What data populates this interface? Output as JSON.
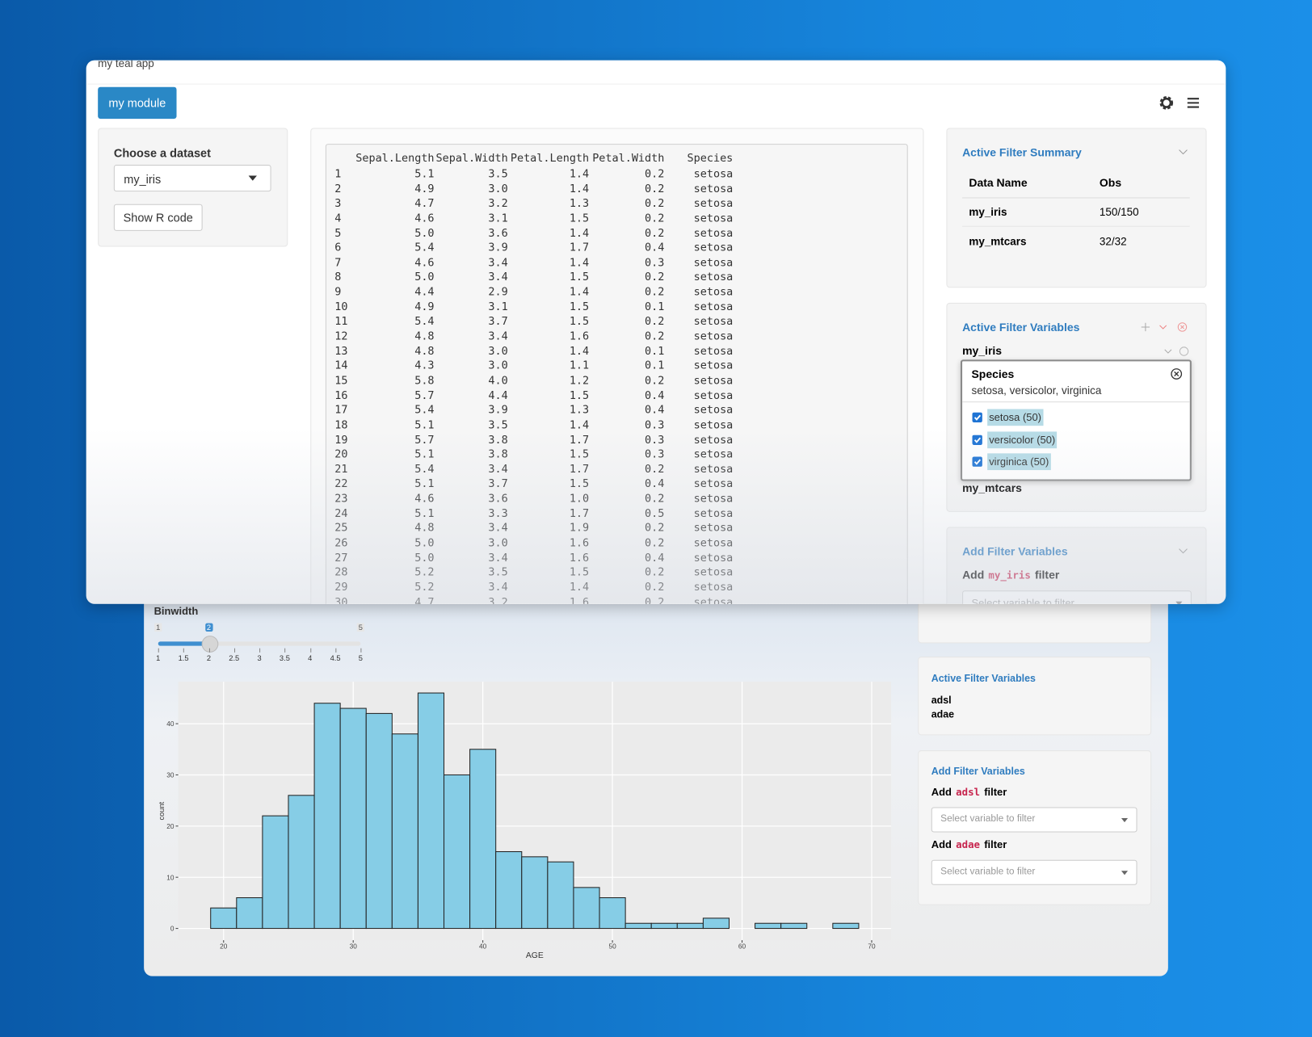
{
  "app_title": "my teal app",
  "module_tab": "my module",
  "encoding": {
    "label": "Choose a dataset",
    "dataset": "my_iris",
    "button": "Show R code"
  },
  "data_table": {
    "columns": [
      "Sepal.Length",
      "Sepal.Width",
      "Petal.Length",
      "Petal.Width",
      "Species"
    ],
    "rows": [
      [
        "1",
        "5.1",
        "3.5",
        "1.4",
        "0.2",
        "setosa"
      ],
      [
        "2",
        "4.9",
        "3.0",
        "1.4",
        "0.2",
        "setosa"
      ],
      [
        "3",
        "4.7",
        "3.2",
        "1.3",
        "0.2",
        "setosa"
      ],
      [
        "4",
        "4.6",
        "3.1",
        "1.5",
        "0.2",
        "setosa"
      ],
      [
        "5",
        "5.0",
        "3.6",
        "1.4",
        "0.2",
        "setosa"
      ],
      [
        "6",
        "5.4",
        "3.9",
        "1.7",
        "0.4",
        "setosa"
      ],
      [
        "7",
        "4.6",
        "3.4",
        "1.4",
        "0.3",
        "setosa"
      ],
      [
        "8",
        "5.0",
        "3.4",
        "1.5",
        "0.2",
        "setosa"
      ],
      [
        "9",
        "4.4",
        "2.9",
        "1.4",
        "0.2",
        "setosa"
      ],
      [
        "10",
        "4.9",
        "3.1",
        "1.5",
        "0.1",
        "setosa"
      ],
      [
        "11",
        "5.4",
        "3.7",
        "1.5",
        "0.2",
        "setosa"
      ],
      [
        "12",
        "4.8",
        "3.4",
        "1.6",
        "0.2",
        "setosa"
      ],
      [
        "13",
        "4.8",
        "3.0",
        "1.4",
        "0.1",
        "setosa"
      ],
      [
        "14",
        "4.3",
        "3.0",
        "1.1",
        "0.1",
        "setosa"
      ],
      [
        "15",
        "5.8",
        "4.0",
        "1.2",
        "0.2",
        "setosa"
      ],
      [
        "16",
        "5.7",
        "4.4",
        "1.5",
        "0.4",
        "setosa"
      ],
      [
        "17",
        "5.4",
        "3.9",
        "1.3",
        "0.4",
        "setosa"
      ],
      [
        "18",
        "5.1",
        "3.5",
        "1.4",
        "0.3",
        "setosa"
      ],
      [
        "19",
        "5.7",
        "3.8",
        "1.7",
        "0.3",
        "setosa"
      ],
      [
        "20",
        "5.1",
        "3.8",
        "1.5",
        "0.3",
        "setosa"
      ],
      [
        "21",
        "5.4",
        "3.4",
        "1.7",
        "0.2",
        "setosa"
      ],
      [
        "22",
        "5.1",
        "3.7",
        "1.5",
        "0.4",
        "setosa"
      ],
      [
        "23",
        "4.6",
        "3.6",
        "1.0",
        "0.2",
        "setosa"
      ],
      [
        "24",
        "5.1",
        "3.3",
        "1.7",
        "0.5",
        "setosa"
      ],
      [
        "25",
        "4.8",
        "3.4",
        "1.9",
        "0.2",
        "setosa"
      ],
      [
        "26",
        "5.0",
        "3.0",
        "1.6",
        "0.2",
        "setosa"
      ],
      [
        "27",
        "5.0",
        "3.4",
        "1.6",
        "0.4",
        "setosa"
      ],
      [
        "28",
        "5.2",
        "3.5",
        "1.5",
        "0.2",
        "setosa"
      ],
      [
        "29",
        "5.2",
        "3.4",
        "1.4",
        "0.2",
        "setosa"
      ],
      [
        "30",
        "4.7",
        "3.2",
        "1.6",
        "0.2",
        "setosa"
      ]
    ]
  },
  "filter_summary": {
    "title": "Active Filter Summary",
    "headers": [
      "Data Name",
      "Obs"
    ],
    "rows": [
      [
        "my_iris",
        "150/150"
      ],
      [
        "my_mtcars",
        "32/32"
      ]
    ]
  },
  "active_filters": {
    "title": "Active Filter Variables",
    "datasets": [
      {
        "name": "my_iris",
        "filters": [
          {
            "variable": "Species",
            "selected": "setosa, versicolor, virginica",
            "choices": [
              "setosa (50)",
              "versicolor (50)",
              "virginica (50)"
            ]
          }
        ]
      },
      {
        "name": "my_mtcars"
      }
    ]
  },
  "add_filters": {
    "title": "Add Filter Variables",
    "rows": [
      {
        "prefix": "Add",
        "dataset": "my_iris",
        "suffix": "filter",
        "placeholder": "Select variable to filter"
      }
    ]
  },
  "second_app": {
    "slider": {
      "label": "Binwidth",
      "min": 1,
      "max": 5,
      "value": 2,
      "ticks": [
        1,
        1.5,
        2,
        2.5,
        3,
        3.5,
        4,
        4.5,
        5
      ]
    },
    "active_filters": {
      "title": "Active Filter Variables",
      "datasets": [
        "adsl",
        "adae"
      ]
    },
    "add_filters": {
      "title": "Add Filter Variables",
      "rows": [
        {
          "prefix": "Add",
          "dataset": "adsl",
          "suffix": "filter",
          "placeholder": "Select variable to filter"
        },
        {
          "prefix": "Add",
          "dataset": "adae",
          "suffix": "filter",
          "placeholder": "Select variable to filter"
        }
      ]
    }
  },
  "chart_data": {
    "type": "histogram",
    "x_label": "AGE",
    "y_label": "count",
    "bins": [
      19,
      21,
      23,
      25,
      27,
      29,
      31,
      33,
      35,
      37,
      39,
      41,
      43,
      45,
      47,
      49,
      51,
      53,
      55,
      57,
      59,
      61,
      63,
      65,
      67,
      69
    ],
    "values": [
      4,
      6,
      22,
      26,
      44,
      43,
      42,
      38,
      46,
      30,
      35,
      15,
      14,
      13,
      8,
      6,
      1,
      1,
      1,
      2,
      0,
      1,
      1,
      0,
      1
    ],
    "color": "#86cde6",
    "xlim": [
      16.5,
      71.5
    ],
    "ylim": [
      -2.3,
      48.2
    ],
    "xticks": [
      20,
      30,
      40,
      50,
      60,
      70
    ],
    "yticks": [
      0,
      10,
      20,
      30,
      40
    ],
    "grid": true
  }
}
